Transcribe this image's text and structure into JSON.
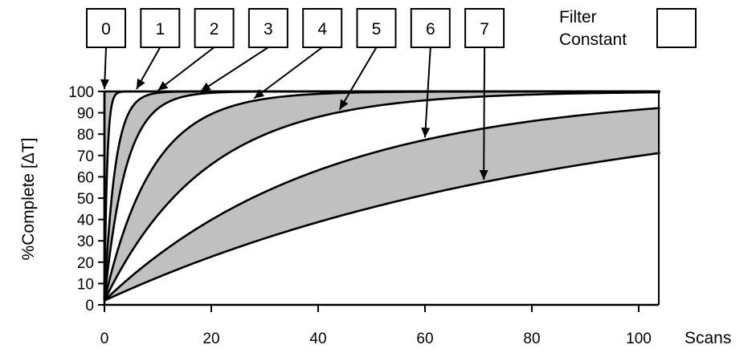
{
  "chart_data": {
    "type": "area",
    "ylabel": "%Complete [ΔT]",
    "xlabel": "Scans",
    "xlim": [
      0,
      104
    ],
    "ylim": [
      0,
      100
    ],
    "x_ticks": [
      0,
      20,
      40,
      60,
      80,
      100
    ],
    "y_ticks": [
      0,
      10,
      20,
      30,
      40,
      50,
      60,
      70,
      80,
      90,
      100
    ],
    "y0": 2,
    "legend": {
      "label_line1": "Filter",
      "label_line2": "Constant",
      "placement": "top-right"
    },
    "fill_colors": {
      "shaded": "#c0c0c0",
      "clear": "#ffffff"
    },
    "curves": [
      {
        "label": "0",
        "time_constant": 0
      },
      {
        "label": "1",
        "time_constant": 0.5
      },
      {
        "label": "2",
        "time_constant": 2
      },
      {
        "label": "3",
        "time_constant": 4
      },
      {
        "label": "4",
        "time_constant": 9
      },
      {
        "label": "5",
        "time_constant": 19
      },
      {
        "label": "6",
        "time_constant": 41
      },
      {
        "label": "7",
        "time_constant": 85
      }
    ]
  }
}
